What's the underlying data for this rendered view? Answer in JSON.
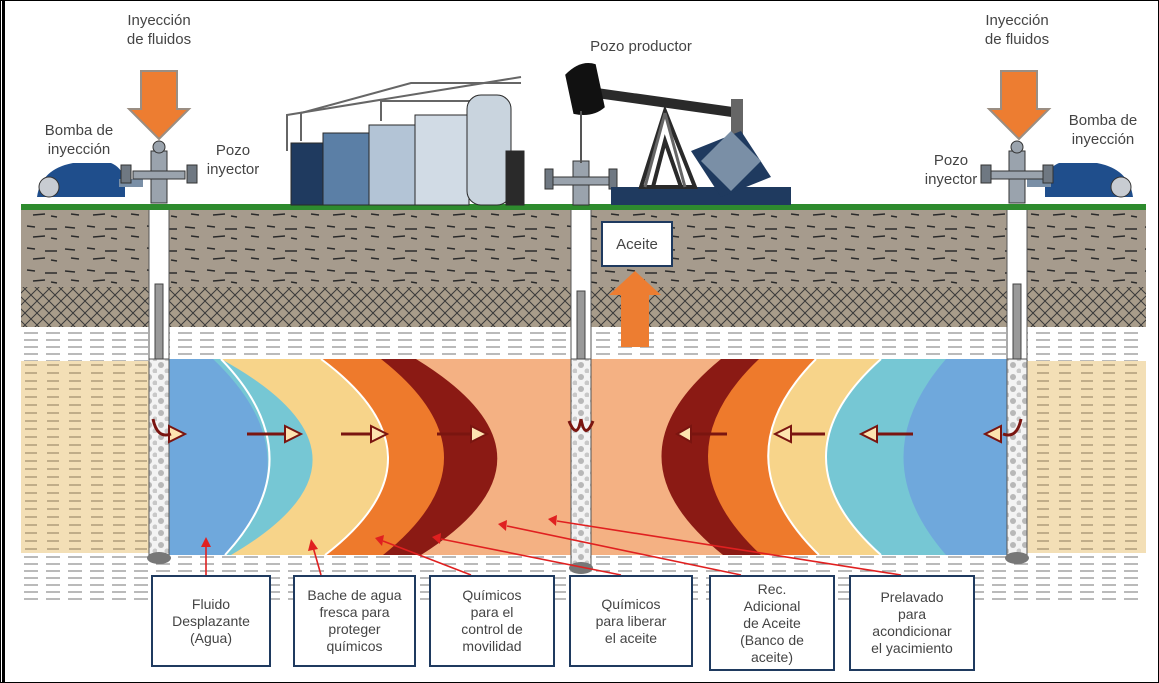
{
  "top_labels": {
    "injection_left": "Inyección\nde fluidos",
    "injection_right": "Inyección\nde fluidos",
    "pump_left": "Bomba de\ninyección",
    "pump_right": "Bomba de\ninyección",
    "well_injector_left": "Pozo\ninyector",
    "well_injector_right": "Pozo\ninyector",
    "producer_well": "Pozo productor",
    "oil": "Aceite"
  },
  "zone_boxes": [
    {
      "label": "Fluido\nDesplazante\n(Agua)"
    },
    {
      "label": "Bache de agua\nfresca para\nproteger\nquímicos"
    },
    {
      "label": "Químicos\npara el\ncontrol de\nmovilidad"
    },
    {
      "label": "Químicos\npara liberar\nel aceite"
    },
    {
      "label": "Rec.\nAdicional\nde Aceite\n(Banco de\naceite)"
    },
    {
      "label": "Prelavado\npara\nacondicionar\nel yacimiento"
    }
  ],
  "colors": {
    "water": "#6fa8dc",
    "fresh_water": "#76c7d4",
    "mobility": "#f7d48a",
    "release": "#ee7a2c",
    "oil_bank": "#8b1a14",
    "preflush": "#f4b183",
    "arrow_orange": "#ed7d31",
    "ground_line": "#2e8b2e",
    "box_border": "#1f3a5f"
  }
}
